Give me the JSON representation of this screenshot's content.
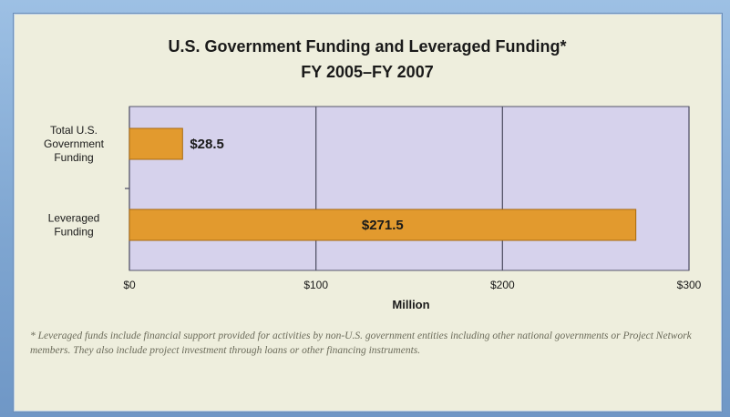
{
  "chart_data": {
    "type": "bar",
    "orientation": "horizontal",
    "title": "U.S. Government Funding and Leveraged Funding*",
    "subtitle": "FY 2005–FY 2007",
    "categories": [
      [
        "Total U.S.",
        "Government",
        "Funding"
      ],
      [
        "Leveraged",
        "Funding"
      ]
    ],
    "values": [
      28.5,
      271.5
    ],
    "data_labels": [
      "$28.5",
      "$271.5"
    ],
    "xlabel": "Million",
    "xlim": [
      0,
      300
    ],
    "ticks": [
      0,
      100,
      200,
      300
    ],
    "tick_labels": [
      "$0",
      "$100",
      "$200",
      "$300"
    ],
    "grid": true,
    "colors": {
      "bar": "#e29a2e",
      "bar_border": "#a86a10",
      "plot_bg": "#d6d2ec",
      "grid": "#55556a"
    }
  },
  "footnote": "* Leveraged funds include financial support provided for activities by non-U.S. government entities including other national governments or Project Network members. They also include project investment through loans or other financing instruments."
}
